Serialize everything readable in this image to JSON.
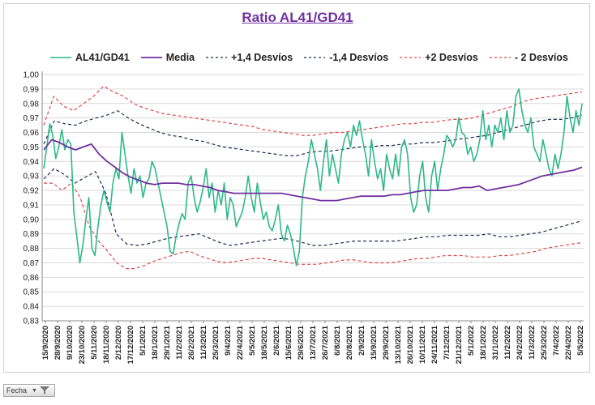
{
  "chart_data": {
    "type": "line",
    "title": "Ratio AL41/GD41",
    "y_range": [
      0.83,
      1.0
    ],
    "y_ticks": [
      "1,00",
      "0,99",
      "0,98",
      "0,97",
      "0,96",
      "0,95",
      "0,94",
      "0,93",
      "0,92",
      "0,91",
      "0,90",
      "0,89",
      "0,88",
      "0,87",
      "0,86",
      "0,85",
      "0,84",
      "0,83"
    ],
    "x_tick_labels": [
      "15/9/2020",
      "28/9/2020",
      "9/10/2020",
      "23/10/2020",
      "5/11/2020",
      "18/11/2020",
      "2/12/2020",
      "17/12/2020",
      "5/1/2021",
      "18/1/2021",
      "29/1/2021",
      "11/2/2021",
      "26/2/2021",
      "11/3/2021",
      "25/3/2021",
      "9/4/2021",
      "22/4/2021",
      "5/5/2021",
      "18/5/2021",
      "2/6/2021",
      "15/6/2021",
      "29/6/2021",
      "13/7/2021",
      "26/7/2021",
      "6/8/2021",
      "20/8/2021",
      "2/9/2021",
      "15/9/2021",
      "29/9/2021",
      "13/10/2021",
      "26/10/2021",
      "10/11/2021",
      "24/11/2021",
      "7/12/2021",
      "21/12/2021",
      "5/1/2022",
      "18/1/2022",
      "31/1/2022",
      "11/2/2022",
      "24/2/2022",
      "11/3/2022",
      "25/3/2022",
      "7/4/2022",
      "22/4/2022",
      "5/5/2022"
    ],
    "grid": true,
    "legend_position": "top",
    "series": [
      {
        "name": "AL41/GD41",
        "color": "#2eb88a",
        "style": "solid",
        "values": [
          0.935,
          0.95,
          0.966,
          0.958,
          0.942,
          0.95,
          0.962,
          0.948,
          0.955,
          0.952,
          0.905,
          0.888,
          0.87,
          0.882,
          0.9,
          0.915,
          0.88,
          0.875,
          0.895,
          0.91,
          0.92,
          0.912,
          0.905,
          0.925,
          0.935,
          0.928,
          0.96,
          0.945,
          0.93,
          0.918,
          0.935,
          0.925,
          0.93,
          0.915,
          0.925,
          0.928,
          0.94,
          0.935,
          0.925,
          0.915,
          0.905,
          0.895,
          0.878,
          0.876,
          0.888,
          0.897,
          0.904,
          0.9,
          0.925,
          0.93,
          0.915,
          0.905,
          0.912,
          0.922,
          0.935,
          0.915,
          0.925,
          0.905,
          0.92,
          0.91,
          0.925,
          0.9,
          0.915,
          0.91,
          0.895,
          0.9,
          0.905,
          0.915,
          0.93,
          0.915,
          0.905,
          0.925,
          0.912,
          0.9,
          0.905,
          0.895,
          0.892,
          0.9,
          0.91,
          0.89,
          0.885,
          0.896,
          0.89,
          0.88,
          0.868,
          0.878,
          0.915,
          0.93,
          0.94,
          0.955,
          0.945,
          0.935,
          0.92,
          0.94,
          0.955,
          0.93,
          0.945,
          0.935,
          0.925,
          0.945,
          0.955,
          0.96,
          0.95,
          0.965,
          0.958,
          0.968,
          0.955,
          0.945,
          0.93,
          0.955,
          0.94,
          0.928,
          0.935,
          0.92,
          0.945,
          0.935,
          0.928,
          0.945,
          0.93,
          0.95,
          0.955,
          0.945,
          0.915,
          0.905,
          0.91,
          0.93,
          0.94,
          0.915,
          0.905,
          0.93,
          0.94,
          0.92,
          0.935,
          0.945,
          0.958,
          0.955,
          0.95,
          0.955,
          0.97,
          0.96,
          0.958,
          0.945,
          0.95,
          0.94,
          0.945,
          0.955,
          0.975,
          0.955,
          0.965,
          0.95,
          0.965,
          0.96,
          0.97,
          0.955,
          0.975,
          0.96,
          0.965,
          0.985,
          0.99,
          0.975,
          0.965,
          0.96,
          0.97,
          0.95,
          0.945,
          0.94,
          0.955,
          0.945,
          0.935,
          0.93,
          0.945,
          0.935,
          0.945,
          0.96,
          0.985,
          0.97,
          0.96,
          0.975,
          0.965,
          0.98
        ]
      },
      {
        "name": "Media",
        "color": "#7030a0",
        "style": "solid",
        "values": [
          0.948,
          0.955,
          0.953,
          0.95,
          0.948,
          0.95,
          0.952,
          0.945,
          0.94,
          0.936,
          0.932,
          0.929,
          0.927,
          0.925,
          0.924,
          0.925,
          0.925,
          0.925,
          0.924,
          0.924,
          0.923,
          0.922,
          0.92,
          0.919,
          0.918,
          0.918,
          0.918,
          0.918,
          0.918,
          0.918,
          0.918,
          0.917,
          0.916,
          0.915,
          0.914,
          0.913,
          0.913,
          0.913,
          0.914,
          0.915,
          0.916,
          0.916,
          0.916,
          0.916,
          0.917,
          0.917,
          0.918,
          0.919,
          0.92,
          0.92,
          0.92,
          0.92,
          0.921,
          0.922,
          0.922,
          0.923,
          0.92,
          0.921,
          0.922,
          0.923,
          0.924,
          0.926,
          0.928,
          0.93,
          0.931,
          0.932,
          0.933,
          0.934,
          0.936
        ]
      },
      {
        "name": "+1,4 Desvíos",
        "color": "#1f2d4e",
        "style": "dashed",
        "values": [
          0.952,
          0.968,
          0.966,
          0.965,
          0.968,
          0.97,
          0.972,
          0.975,
          0.97,
          0.966,
          0.963,
          0.96,
          0.958,
          0.957,
          0.955,
          0.954,
          0.952,
          0.95,
          0.949,
          0.948,
          0.947,
          0.946,
          0.945,
          0.944,
          0.944,
          0.946,
          0.947,
          0.947,
          0.948,
          0.949,
          0.95,
          0.95,
          0.951,
          0.951,
          0.952,
          0.952,
          0.953,
          0.953,
          0.954,
          0.955,
          0.956,
          0.957,
          0.958,
          0.96,
          0.962,
          0.964,
          0.966,
          0.968,
          0.969,
          0.969,
          0.97,
          0.972
        ]
      },
      {
        "name": "-1,4 Desvíos",
        "color": "#1f2d4e",
        "style": "dashed",
        "values": [
          0.928,
          0.935,
          0.931,
          0.925,
          0.929,
          0.933,
          0.918,
          0.89,
          0.883,
          0.882,
          0.883,
          0.885,
          0.887,
          0.888,
          0.889,
          0.89,
          0.887,
          0.884,
          0.882,
          0.883,
          0.884,
          0.885,
          0.886,
          0.887,
          0.886,
          0.884,
          0.882,
          0.882,
          0.883,
          0.884,
          0.885,
          0.885,
          0.885,
          0.885,
          0.885,
          0.886,
          0.887,
          0.888,
          0.888,
          0.889,
          0.889,
          0.889,
          0.889,
          0.89,
          0.888,
          0.888,
          0.889,
          0.89,
          0.891,
          0.893,
          0.895,
          0.897,
          0.899
        ]
      },
      {
        "name": "+2 Desvíos",
        "color": "#e0474c",
        "style": "dashed",
        "values": [
          0.965,
          0.985,
          0.978,
          0.975,
          0.98,
          0.985,
          0.992,
          0.988,
          0.985,
          0.98,
          0.977,
          0.975,
          0.973,
          0.972,
          0.971,
          0.97,
          0.969,
          0.968,
          0.967,
          0.966,
          0.965,
          0.964,
          0.962,
          0.961,
          0.96,
          0.959,
          0.958,
          0.958,
          0.959,
          0.96,
          0.96,
          0.961,
          0.962,
          0.963,
          0.964,
          0.965,
          0.966,
          0.966,
          0.967,
          0.967,
          0.968,
          0.969,
          0.969,
          0.97,
          0.972,
          0.974,
          0.976,
          0.978,
          0.981,
          0.983,
          0.984,
          0.985,
          0.986,
          0.987,
          0.988
        ]
      },
      {
        "name": "- 2 Desvíos",
        "color": "#e0474c",
        "style": "dashed",
        "values": [
          0.925,
          0.925,
          0.92,
          0.925,
          0.915,
          0.895,
          0.885,
          0.878,
          0.87,
          0.866,
          0.866,
          0.868,
          0.871,
          0.873,
          0.875,
          0.877,
          0.878,
          0.875,
          0.873,
          0.871,
          0.87,
          0.871,
          0.872,
          0.873,
          0.873,
          0.872,
          0.871,
          0.87,
          0.869,
          0.869,
          0.869,
          0.87,
          0.871,
          0.872,
          0.872,
          0.871,
          0.87,
          0.87,
          0.87,
          0.871,
          0.872,
          0.873,
          0.873,
          0.874,
          0.875,
          0.875,
          0.875,
          0.874,
          0.874,
          0.874,
          0.875,
          0.875,
          0.876,
          0.877,
          0.878,
          0.88,
          0.881,
          0.882,
          0.883,
          0.884
        ]
      }
    ]
  },
  "filter_button": {
    "label": "Fecha"
  }
}
